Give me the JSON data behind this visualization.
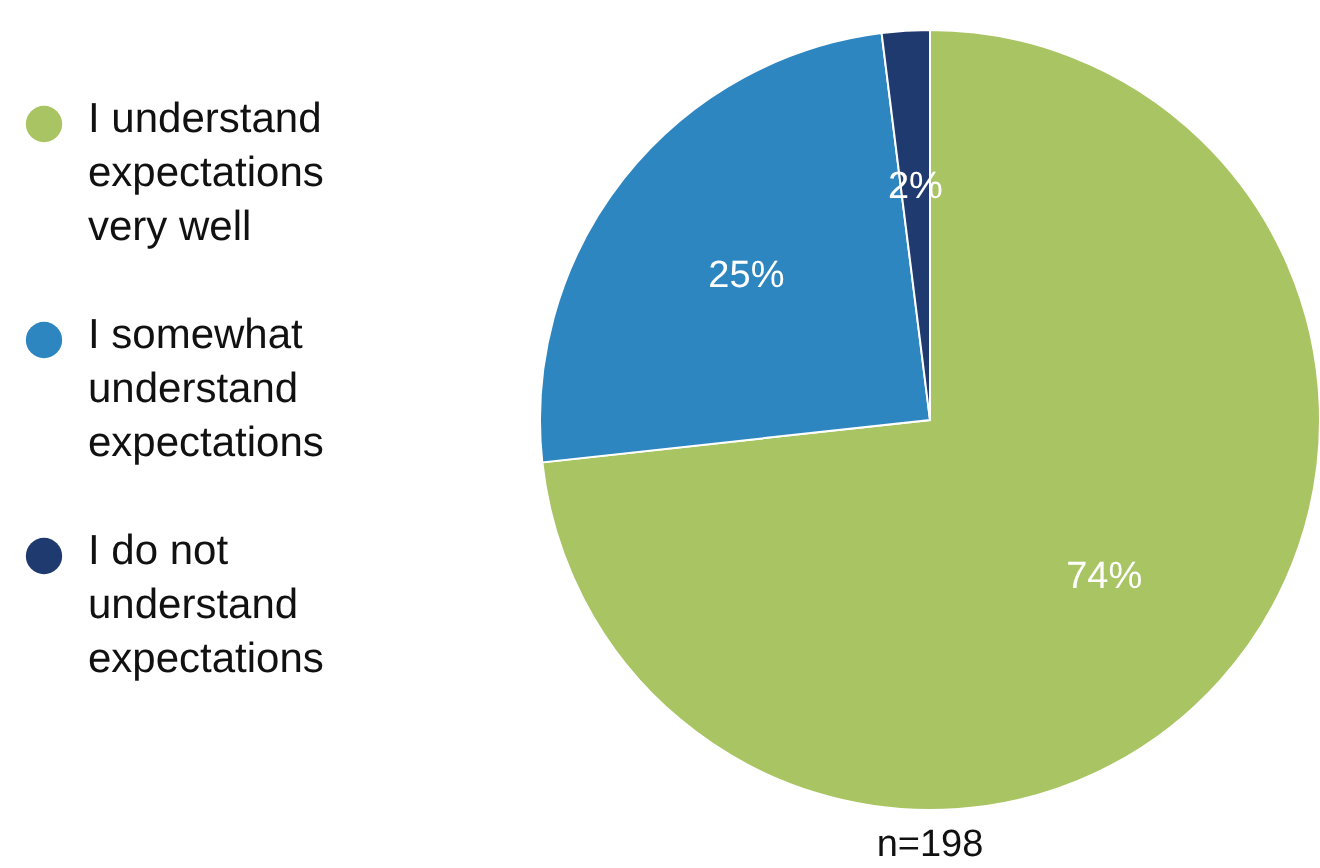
{
  "chart_data": {
    "type": "pie",
    "categories": [
      "I understand expectations very well",
      "I somewhat understand expectations",
      "I do not understand expectations"
    ],
    "values": [
      74,
      25,
      2
    ],
    "colors": [
      "#a9c462",
      "#2e86c1",
      "#1f3a6e"
    ],
    "value_labels": [
      "74%",
      "25%",
      "2%"
    ],
    "legend": "left",
    "annotations": [
      "n=198"
    ]
  }
}
